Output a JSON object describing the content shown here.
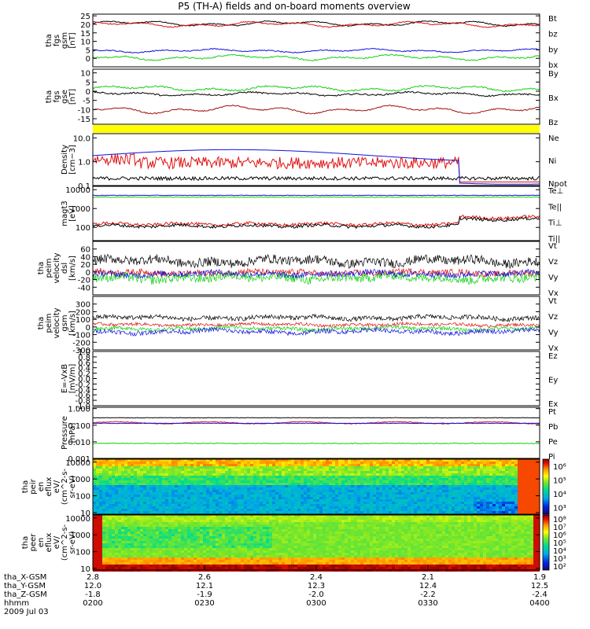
{
  "title": "P5 (TH-A) fields and on-board moments overview",
  "colors": {
    "black": "#000000",
    "red": "#e01010",
    "green": "#10d010",
    "blue": "#1010e0",
    "yellow": "#ffff00"
  },
  "chart_data": [
    {
      "type": "line",
      "scale": "linear",
      "ylim": [
        -5,
        26
      ],
      "yticks": [
        "0",
        "5",
        "10",
        "15",
        "20",
        "25"
      ],
      "ylabel": [
        "tha",
        "fgs",
        "gsm",
        "[nT]"
      ],
      "series": [
        {
          "name": "Bt",
          "color": "black",
          "base": 20.5,
          "amp": 1.5,
          "noise": 0.3,
          "shape": "wave"
        },
        {
          "name": "bz",
          "color": "red",
          "base": 20,
          "amp": 1.5,
          "noise": 0.3,
          "shape": "wave"
        },
        {
          "name": "by",
          "color": "green",
          "base": 0.5,
          "amp": 1.5,
          "noise": 0.4,
          "shape": "wave"
        },
        {
          "name": "bx",
          "color": "blue",
          "base": 4.5,
          "amp": 1.0,
          "noise": 0.3,
          "shape": "wave"
        }
      ]
    },
    {
      "type": "line",
      "scale": "linear",
      "ylim": [
        -18,
        12
      ],
      "yticks": [
        "-15",
        "-10",
        "-5",
        "0",
        "5",
        "10"
      ],
      "ylabel": [
        "tha",
        "fgs",
        "gse",
        "[nT]"
      ],
      "series": [
        {
          "name": "By",
          "color": "green",
          "base": 1.5,
          "amp": 1.5,
          "noise": 0.4,
          "shape": "wave"
        },
        {
          "name": "Bx",
          "color": "black",
          "base": -1.5,
          "amp": 1.0,
          "noise": 0.4,
          "shape": "wave"
        },
        {
          "name": "Bz",
          "color": "#a01010",
          "base": -10,
          "amp": 2.0,
          "noise": 0.3,
          "shape": "wave"
        }
      ]
    },
    {
      "type": "bar",
      "scale": "linear",
      "ylim": [
        0,
        1
      ],
      "yticks": [],
      "ylabel": [],
      "series": []
    },
    {
      "type": "line",
      "scale": "log",
      "ylim": [
        0.1,
        15
      ],
      "yticks": [
        "0.1",
        "1.0",
        "10.0"
      ],
      "ylabel": [
        "Density",
        "[cm−3]"
      ],
      "series": [
        {
          "name": "Ne",
          "color": "red",
          "base": 0.8,
          "amp": 0.4,
          "noise": 0.25,
          "shape": "density_ne"
        },
        {
          "name": "Ni",
          "color": "black",
          "base": 0.2,
          "amp": 0.1,
          "noise": 0.1,
          "shape": "density_ni"
        },
        {
          "name": "Npot",
          "color": "blue",
          "base": 2.0,
          "amp": 0.5,
          "noise": 0.0,
          "shape": "density_npot"
        }
      ]
    },
    {
      "type": "line",
      "scale": "log",
      "ylim": [
        20,
        15000
      ],
      "yticks": [
        "100",
        "1000",
        "10000"
      ],
      "ylabel": [
        "magt3",
        "[eV]"
      ],
      "series": [
        {
          "name": "Te⊥",
          "color": "red",
          "base": 150,
          "amp": 0.2,
          "noise": 0.08,
          "shape": "temp_e"
        },
        {
          "name": "Te||",
          "color": "black",
          "base": 120,
          "amp": 0.2,
          "noise": 0.08,
          "shape": "temp_e"
        },
        {
          "name": "Ti⊥",
          "color": "blue",
          "base": 5000,
          "amp": 0.05,
          "noise": 0.03,
          "shape": "flat"
        },
        {
          "name": "Ti||",
          "color": "green",
          "base": 4000,
          "amp": 0.05,
          "noise": 0.03,
          "shape": "flat"
        }
      ]
    },
    {
      "type": "line",
      "scale": "linear",
      "ylim": [
        -60,
        80
      ],
      "yticks": [
        "-40",
        "-20",
        "0",
        "20",
        "40",
        "60"
      ],
      "ylabel": [
        "tha",
        "peim",
        "velocity",
        "dsl",
        "[km/s]"
      ],
      "series": [
        {
          "name": "Vt",
          "color": "black",
          "base": 28,
          "amp": 8,
          "noise": 12,
          "shape": "noisy"
        },
        {
          "name": "Vz",
          "color": "red",
          "base": -2,
          "amp": 4,
          "noise": 8,
          "shape": "noisy"
        },
        {
          "name": "Vy",
          "color": "green",
          "base": -15,
          "amp": 6,
          "noise": 12,
          "shape": "noisy"
        },
        {
          "name": "Vx",
          "color": "blue",
          "base": -5,
          "amp": 4,
          "noise": 8,
          "shape": "noisy"
        }
      ]
    },
    {
      "type": "line",
      "scale": "linear",
      "ylim": [
        -300,
        400
      ],
      "yticks": [
        "-300",
        "-200",
        "-100",
        "0",
        "100",
        "200",
        "300"
      ],
      "ylabel": [
        "tha",
        "peim",
        "velocity",
        "gsm",
        "[km/s]"
      ],
      "series": [
        {
          "name": "Vt",
          "color": "black",
          "base": 120,
          "amp": 20,
          "noise": 30,
          "shape": "noisy"
        },
        {
          "name": "Vz",
          "color": "red",
          "base": 30,
          "amp": 15,
          "noise": 20,
          "shape": "noisy"
        },
        {
          "name": "Vy",
          "color": "green",
          "base": -20,
          "amp": 20,
          "noise": 25,
          "shape": "noisy"
        },
        {
          "name": "Vx",
          "color": "blue",
          "base": -60,
          "amp": 25,
          "noise": 30,
          "shape": "noisy"
        }
      ]
    },
    {
      "type": "line",
      "scale": "linear",
      "ylim": [
        -1,
        1
      ],
      "yticks": [
        "-1.0",
        "-0.8",
        "-0.6",
        "-0.4",
        "-0.2",
        "0.0",
        "0.2",
        "0.4",
        "0.6",
        "0.8",
        "1.0"
      ],
      "ylabel": [
        "E=-VxB",
        "[mV/m]"
      ],
      "series": [
        {
          "name": "Ez",
          "color": "red",
          "shape": "none"
        },
        {
          "name": "Ey",
          "color": "green",
          "shape": "none"
        },
        {
          "name": "Ex",
          "color": "blue",
          "shape": "none"
        }
      ]
    },
    {
      "type": "line",
      "scale": "log",
      "ylim": [
        0.001,
        1.2
      ],
      "yticks": [
        "0.001",
        "0.010",
        "0.100",
        "1.000"
      ],
      "ylabel": [
        "Pressure",
        "[nPa]"
      ],
      "series": [
        {
          "name": "Pt",
          "color": "black",
          "base": 0.28,
          "amp": 0.1,
          "noise": 0.03,
          "shape": "flat"
        },
        {
          "name": "Pb",
          "color": "red",
          "base": 0.14,
          "amp": 0.1,
          "noise": 0.04,
          "shape": "wave_log"
        },
        {
          "name": "Pe",
          "color": "green",
          "base": 0.008,
          "amp": 0.1,
          "noise": 0.05,
          "shape": "flat"
        },
        {
          "name": "Pi",
          "color": "blue",
          "base": 0.13,
          "amp": 0.1,
          "noise": 0.03,
          "shape": "flat"
        }
      ]
    },
    {
      "type": "heatmap",
      "scale": "log",
      "ylim": [
        8,
        15000
      ],
      "yticks": [
        "10",
        "100",
        "1000",
        "10000"
      ],
      "ylabel": [
        "tha",
        "peir",
        "en",
        "eflux",
        "eV/",
        "(cm^2-s-",
        "sr-eV)"
      ],
      "colorbar": {
        "ticks": [
          "10³",
          "10⁴",
          "10⁵",
          "10⁶"
        ]
      }
    },
    {
      "type": "heatmap",
      "scale": "log",
      "ylim": [
        8,
        15000
      ],
      "yticks": [
        "10",
        "100",
        "1000",
        "10000"
      ],
      "ylabel": [
        "tha",
        "peer",
        "en",
        "eflux",
        "eV/",
        "(cm^2-s-",
        "sr-eV)"
      ],
      "colorbar": {
        "ticks": [
          "10²",
          "10³",
          "10⁴",
          "10⁵",
          "10⁶",
          "10⁷",
          "10⁸"
        ]
      }
    }
  ],
  "xaxis": {
    "ticks": [
      {
        "rows": [
          "2.8",
          "12.0",
          "-1.8",
          "0200"
        ]
      },
      {
        "rows": [
          "2.6",
          "12.1",
          "-1.9",
          "0230"
        ]
      },
      {
        "rows": [
          "2.4",
          "12.3",
          "-2.0",
          "0300"
        ]
      },
      {
        "rows": [
          "2.1",
          "12.4",
          "-2.2",
          "0330"
        ]
      },
      {
        "rows": [
          "1.9",
          "12.5",
          "-2.4",
          "0400"
        ]
      }
    ],
    "row_labels": [
      "tha_X-GSM",
      "tha_Y-GSM",
      "tha_Z-GSM",
      "hhmm",
      "2009 Jul 03"
    ]
  }
}
